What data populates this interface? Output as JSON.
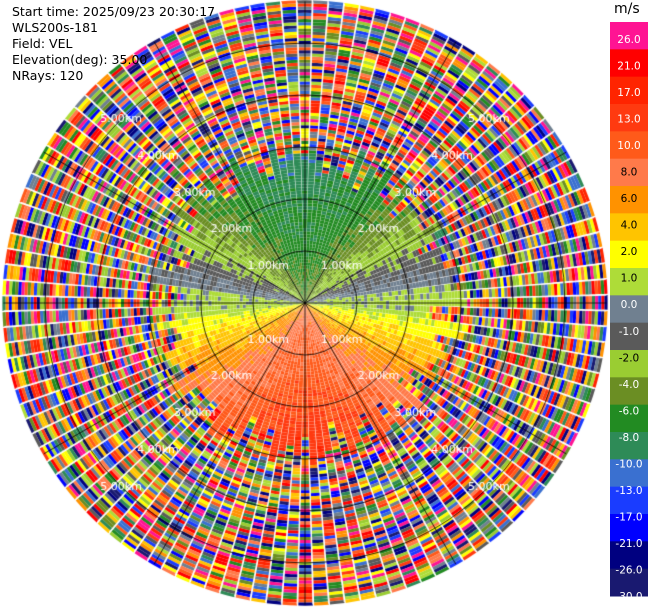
{
  "header": {
    "start_time": "Start time: 2025/09/23 20:30:17",
    "site": "WLS200s-181",
    "field": "Field: VEL",
    "elevation": "Elevation(deg): 35.00",
    "nrays": "NRays: 120"
  },
  "colorbar": {
    "unit": "m/s",
    "tick_labels": [
      "26.0",
      "21.0",
      "17.0",
      "13.0",
      "10.0",
      "8.0",
      "6.0",
      "4.0",
      "2.0",
      "1.0",
      "0.0",
      "-1.0",
      "-2.0",
      "-4.0",
      "-6.0",
      "-8.0",
      "-10.0",
      "-13.0",
      "-17.0",
      "-21.0",
      "-26.0",
      "-30.0"
    ],
    "colors": [
      "#ff1493",
      "#ff0000",
      "#ff2400",
      "#ff3a10",
      "#ff5a1a",
      "#ff7a4a",
      "#ff9200",
      "#ffc400",
      "#ffff00",
      "#aedc38",
      "#708090",
      "#5a5a5a",
      "#9acd32",
      "#6b8e23",
      "#228b22",
      "#2e8b57",
      "#3a70d0",
      "#1a3cff",
      "#0000ff",
      "#000080",
      "#191970"
    ]
  },
  "chart_data": {
    "type": "heatmap",
    "projection": "polar PPI",
    "field": "VEL",
    "units": "m/s",
    "nrays": 120,
    "elevation_deg": 35.0,
    "range_rings_km": [
      1.0,
      2.0,
      3.0,
      4.0,
      5.0
    ],
    "ring_labels": [
      "1.00km",
      "2.00km",
      "3.00km",
      "4.00km",
      "5.00km"
    ],
    "max_range_km": 5.8,
    "valid_data_range_km": 2.9,
    "vmin": -30.0,
    "vmax": 26.0,
    "pattern_notes": "Inner region (under ~3 km): north and northwest approx -4 to -17 m/s (blue/green); south and southeast approx +4 to +13 m/s (yellow/orange/red); near 0 along a west-east band. Beyond ~3 km the field is noise spanning the full color scale."
  }
}
